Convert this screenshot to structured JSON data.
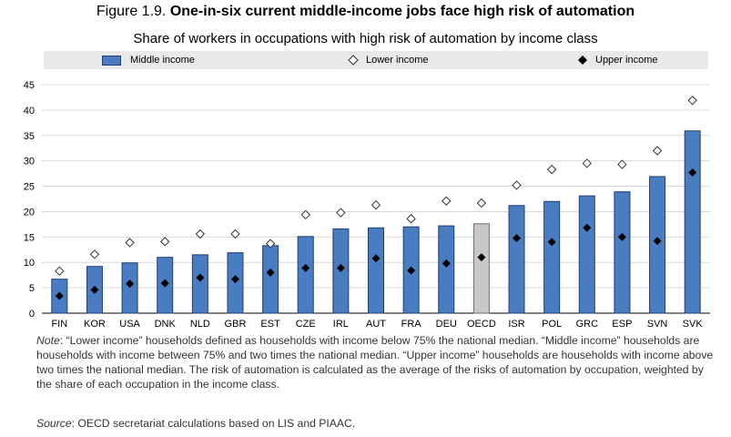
{
  "header": {
    "figure_number": "Figure 1.9.",
    "title": "One-in-six current middle-income jobs face high risk of automation",
    "subtitle": "Share of workers in occupations with high risk of automation by income class"
  },
  "legend": {
    "middle": "Middle income",
    "lower": "Lower income",
    "upper": "Upper income"
  },
  "colors": {
    "bar": "#4a7cc1",
    "bar_highlight": "#c8c8c8",
    "bar_stroke": "#1f3f73",
    "upper_marker": "#000000",
    "lower_marker": "#ffffff"
  },
  "chart_data": {
    "type": "bar",
    "categories": [
      "FIN",
      "KOR",
      "USA",
      "DNK",
      "NLD",
      "GBR",
      "EST",
      "CZE",
      "IRL",
      "AUT",
      "FRA",
      "DEU",
      "OECD",
      "ISR",
      "POL",
      "GRC",
      "ESP",
      "SVN",
      "SVK"
    ],
    "highlight_category": "OECD",
    "series": [
      {
        "name": "Middle income",
        "kind": "bar",
        "values": [
          6.7,
          9.2,
          9.9,
          11.0,
          11.5,
          11.9,
          13.3,
          15.1,
          16.6,
          16.8,
          17.0,
          17.2,
          17.6,
          21.2,
          22.0,
          23.1,
          23.9,
          26.9,
          35.9
        ]
      },
      {
        "name": "Lower income",
        "kind": "marker-diamond-open",
        "values": [
          8.3,
          11.6,
          13.9,
          14.1,
          15.6,
          15.6,
          13.7,
          19.4,
          19.8,
          21.3,
          18.6,
          22.1,
          21.7,
          25.2,
          28.3,
          29.5,
          29.3,
          32.0,
          41.9
        ]
      },
      {
        "name": "Upper income",
        "kind": "marker-diamond-filled",
        "values": [
          3.4,
          4.6,
          5.8,
          5.9,
          7.0,
          6.7,
          8.0,
          8.9,
          8.9,
          10.8,
          8.4,
          9.8,
          11.0,
          14.8,
          14.0,
          16.8,
          15.0,
          14.2,
          27.7
        ]
      }
    ],
    "y_ticks": [
      "0",
      "5",
      "10",
      "15",
      "20",
      "25",
      "30",
      "35",
      "40",
      "45"
    ],
    "ylim": [
      0,
      45
    ],
    "grid": true,
    "legend_position": "top"
  },
  "notes": {
    "note_label": "Note",
    "note_text": ": “Lower income” households defined as households with income below 75% the national median. “Middle income” households are households with income between 75% and two times the national median. “Upper income” households are households with income above two times the national median. The risk of automation is calculated as the average of the risks of automation by occupation, weighted by the share of each occupation in the income class.",
    "source_label": "Source",
    "source_text": ": OECD secretariat calculations based on LIS and PIAAC."
  }
}
